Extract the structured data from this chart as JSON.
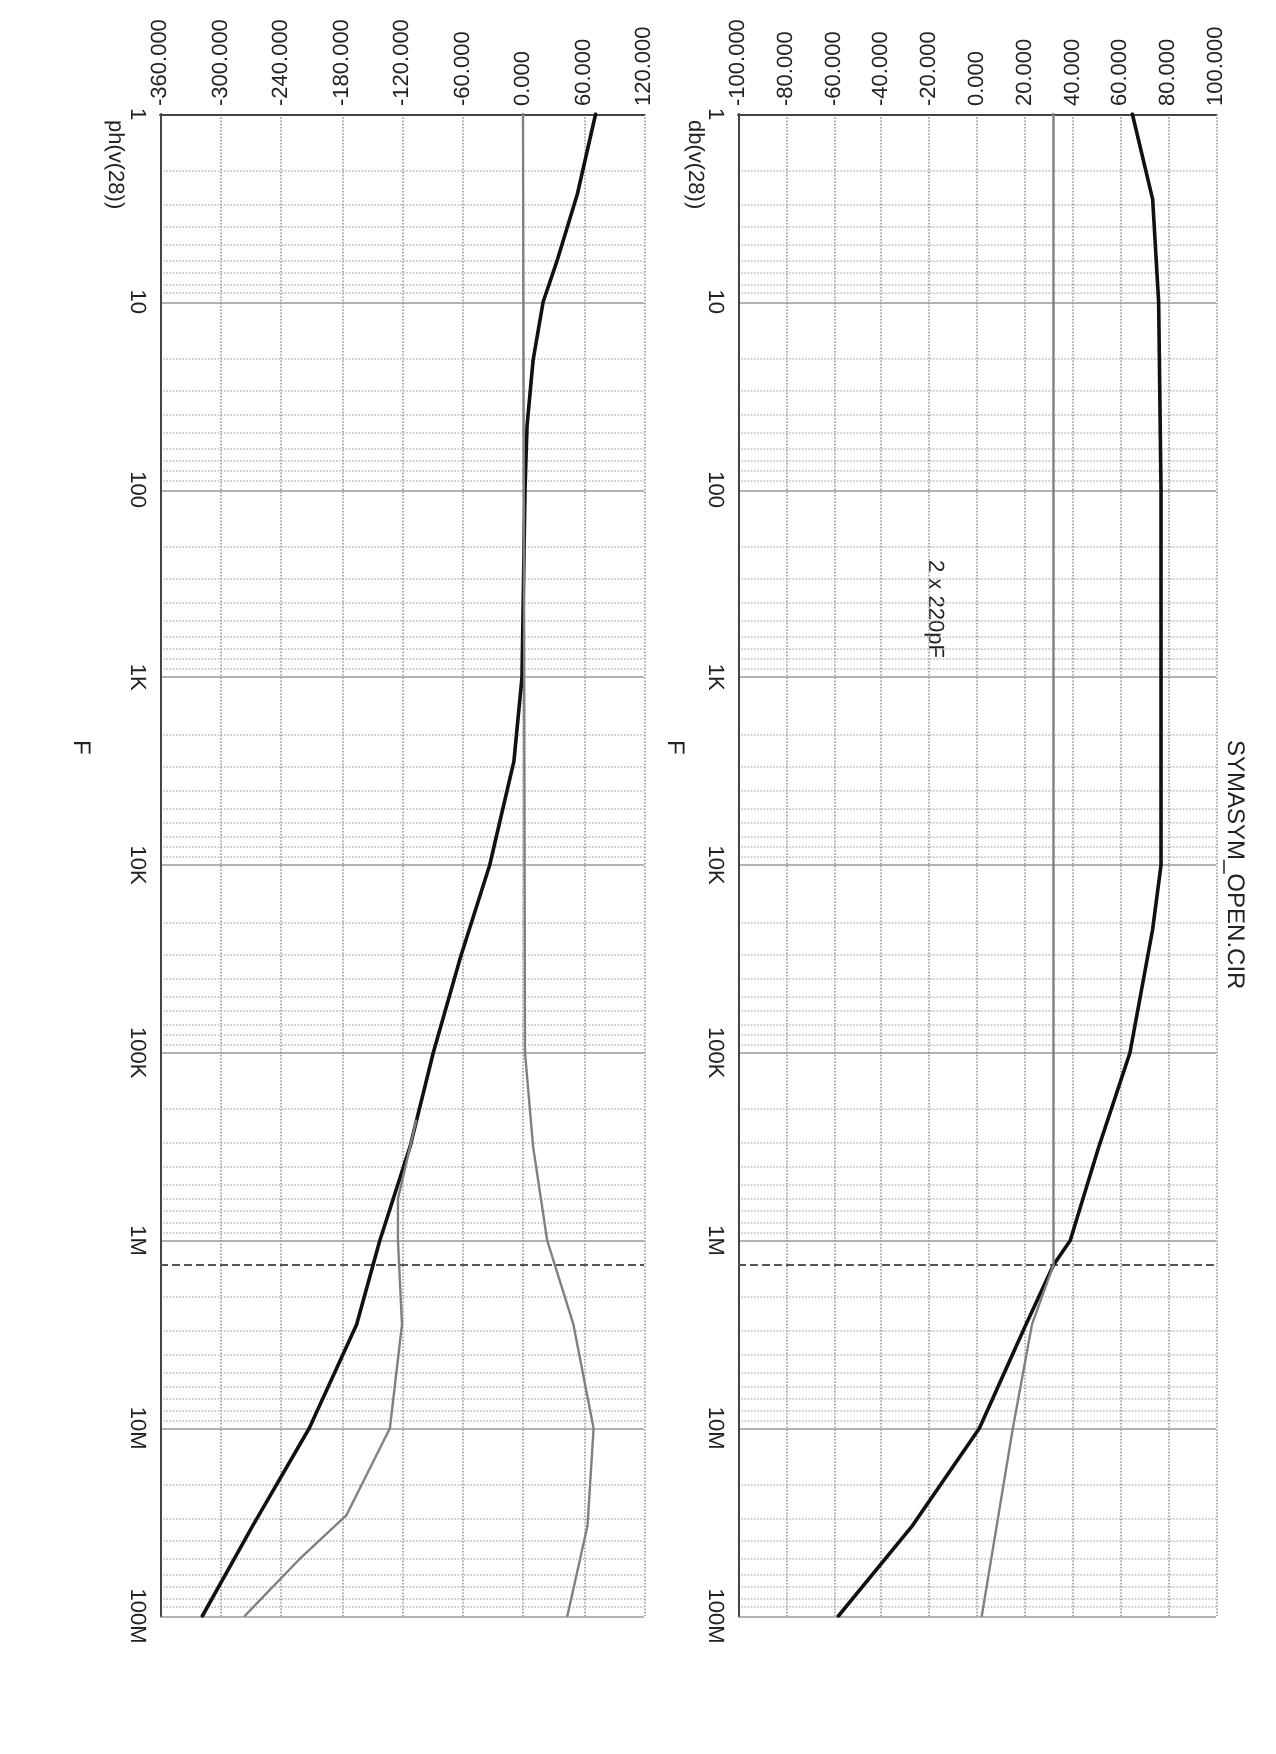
{
  "chart_data": [
    {
      "type": "line",
      "title": "SYMASYM_OPEN.CIR",
      "ylabel": "F",
      "annotations": [
        "2 x 220pF",
        "db(v(28))"
      ],
      "log": "y",
      "grid": true,
      "marker": "none",
      "line_style": "solid",
      "ylim": [
        100000000,
        1
      ],
      "yticks": [
        {
          "value": 1,
          "label": "1"
        },
        {
          "value": 10,
          "label": "10"
        },
        {
          "value": 100,
          "label": "100"
        },
        {
          "value": 1000,
          "label": "1K"
        },
        {
          "value": 10000,
          "label": "10K"
        },
        {
          "value": 100000,
          "label": "100K"
        },
        {
          "value": 1000000,
          "label": "1M"
        },
        {
          "value": 10000000,
          "label": "10M"
        },
        {
          "value": 100000000,
          "label": "100M"
        }
      ],
      "xlim": [
        -100,
        100
      ],
      "xticks": [
        {
          "value": -100,
          "label": "-100.000"
        },
        {
          "value": -80,
          "label": "-80.000"
        },
        {
          "value": -60,
          "label": "-60.000"
        },
        {
          "value": -40,
          "label": "-40.000"
        },
        {
          "value": -20,
          "label": "-20.000"
        },
        {
          "value": 0,
          "label": "0.000"
        },
        {
          "value": 20,
          "label": "20.000"
        },
        {
          "value": 40,
          "label": "40.000"
        },
        {
          "value": 60,
          "label": "60.000"
        },
        {
          "value": 80,
          "label": "80.000"
        },
        {
          "value": 100,
          "label": "100.000"
        }
      ],
      "ref_lines": [
        {
          "axis": "y",
          "value": 1350000,
          "line_style": "dashed",
          "color": "#555555"
        }
      ],
      "series": [
        {
          "color": "#111111",
          "values": [
            1,
            2.85,
            10,
            100,
            1000,
            10000,
            22000,
            100000,
            316000,
            1000000,
            1350000,
            2800000,
            10000000,
            33000000,
            100000000
          ],
          "x": [
            65,
            73.5,
            76,
            77,
            77,
            77,
            73.5,
            64,
            51,
            39,
            32,
            20.5,
            1,
            -27,
            -58
          ]
        },
        {
          "color": "#808080",
          "values": [
            1,
            1350000,
            2800000,
            10000000,
            100000000
          ],
          "x": [
            32,
            32,
            23,
            15,
            2
          ]
        }
      ]
    },
    {
      "type": "line",
      "ylabel": "F",
      "annotations": [
        "ph(v(28))"
      ],
      "log": "y",
      "grid": true,
      "marker": "none",
      "line_style": "solid",
      "ylim": [
        100000000,
        1
      ],
      "yticks": [
        {
          "value": 1,
          "label": "1"
        },
        {
          "value": 10,
          "label": "10"
        },
        {
          "value": 100,
          "label": "100"
        },
        {
          "value": 1000,
          "label": "1K"
        },
        {
          "value": 10000,
          "label": "10K"
        },
        {
          "value": 100000,
          "label": "100K"
        },
        {
          "value": 1000000,
          "label": "1M"
        },
        {
          "value": 10000000,
          "label": "10M"
        },
        {
          "value": 100000000,
          "label": "100M"
        }
      ],
      "xlim": [
        -360,
        120
      ],
      "xticks": [
        {
          "value": -360,
          "label": "-360.000"
        },
        {
          "value": -300,
          "label": "-300.000"
        },
        {
          "value": -240,
          "label": "-240.000"
        },
        {
          "value": -180,
          "label": "-180.000"
        },
        {
          "value": -120,
          "label": "-120.000"
        },
        {
          "value": -60,
          "label": "-60.000"
        },
        {
          "value": 0,
          "label": "0.000"
        },
        {
          "value": 60,
          "label": "60.000"
        },
        {
          "value": 120,
          "label": "120.000"
        }
      ],
      "ref_lines": [
        {
          "axis": "y",
          "value": 1350000,
          "line_style": "dashed",
          "color": "#555555"
        }
      ],
      "series": [
        {
          "color": "#111111",
          "values": [
            1,
            2.66,
            6,
            10,
            20.5,
            46,
            100,
            1000,
            2800,
            10000,
            31000,
            100000,
            316000,
            1000000,
            2800000,
            10000000,
            33000000,
            100000000
          ],
          "x": [
            72,
            54,
            34,
            20,
            10,
            4,
            2,
            -1,
            -9,
            -33,
            -62,
            -89,
            -112,
            -142,
            -165,
            -212,
            -268,
            -318
          ]
        },
        {
          "color": "#808080",
          "values": [
            1,
            100000,
            316000,
            1000000,
            2800000,
            10000000,
            33000000,
            100000000
          ],
          "x": [
            0,
            2,
            10,
            24,
            50,
            70,
            64,
            44
          ]
        },
        {
          "color": "#808080",
          "values": [
            230000,
            600000,
            1000000,
            2800000,
            10000000,
            29000000,
            50000000,
            100000000
          ],
          "x": [
            -106,
            -124,
            -124,
            -120,
            -132,
            -175,
            -222,
            -276
          ]
        }
      ]
    }
  ]
}
